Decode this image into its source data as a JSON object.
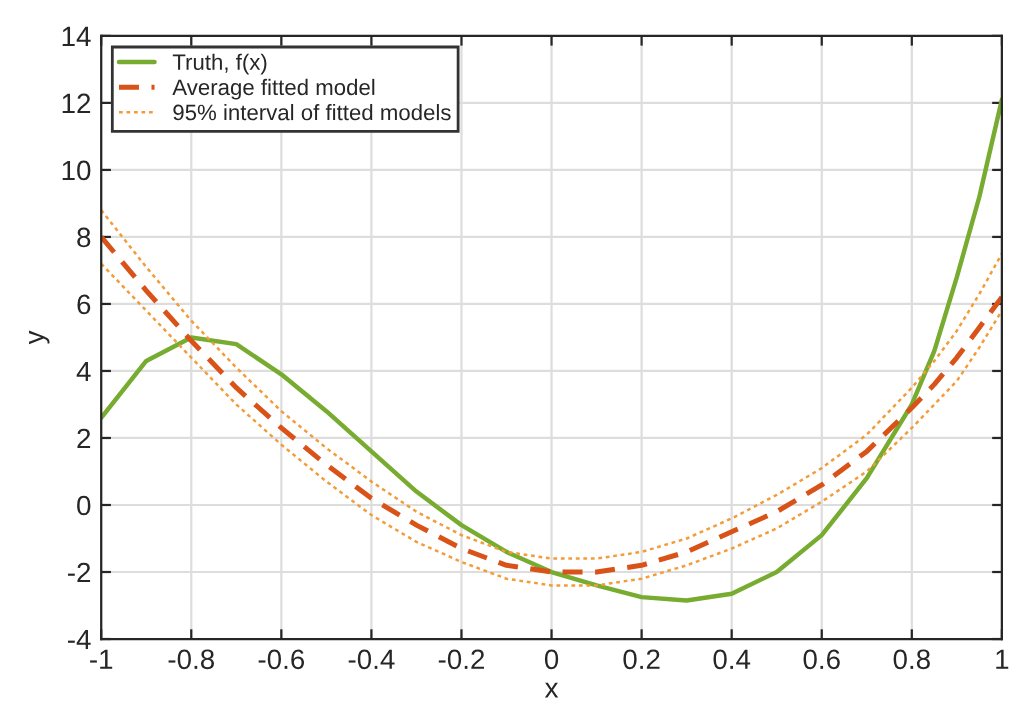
{
  "chart_data": {
    "type": "line",
    "xlabel": "x",
    "ylabel": "y",
    "x": [
      -1,
      -0.9,
      -0.8,
      -0.7,
      -0.6,
      -0.5,
      -0.4,
      -0.3,
      -0.2,
      -0.1,
      0,
      0.1,
      0.2,
      0.3,
      0.4,
      0.5,
      0.6,
      0.7,
      0.8,
      0.85,
      0.9,
      0.95,
      1
    ],
    "series": [
      {
        "name": "Truth, f(x)",
        "color": "#77ac30",
        "line_style": "solid",
        "values": [
          2.6,
          4.3,
          5.0,
          4.8,
          3.9,
          2.8,
          1.6,
          0.4,
          -0.6,
          -1.4,
          -2.0,
          -2.4,
          -2.75,
          -2.85,
          -2.65,
          -2.0,
          -0.9,
          0.8,
          3.0,
          4.6,
          6.8,
          9.2,
          12.1
        ]
      },
      {
        "name": "Average fitted model",
        "color": "#d95319",
        "line_style": "dashed",
        "values": [
          8.0,
          6.4,
          4.9,
          3.5,
          2.3,
          1.2,
          0.2,
          -0.6,
          -1.3,
          -1.8,
          -2.0,
          -2.0,
          -1.8,
          -1.4,
          -0.8,
          -0.2,
          0.6,
          1.6,
          2.9,
          3.6,
          4.4,
          5.3,
          6.2
        ]
      },
      {
        "name": "95% interval of fitted models",
        "color": "#f39c3a",
        "line_style": "dotted",
        "values": [
          8.8,
          7.1,
          5.5,
          4.1,
          2.8,
          1.7,
          0.7,
          -0.2,
          -0.9,
          -1.4,
          -1.6,
          -1.6,
          -1.4,
          -1.0,
          -0.4,
          0.3,
          1.1,
          2.1,
          3.5,
          4.3,
          5.2,
          6.3,
          7.5
        ]
      },
      {
        "color": "#f39c3a",
        "line_style": "dotted",
        "values": [
          7.2,
          5.8,
          4.4,
          3.0,
          1.8,
          0.7,
          -0.3,
          -1.1,
          -1.7,
          -2.2,
          -2.4,
          -2.4,
          -2.2,
          -1.8,
          -1.3,
          -0.7,
          0.1,
          1.0,
          2.3,
          3.0,
          3.7,
          4.7,
          5.8
        ]
      }
    ],
    "xlim": [
      -1,
      1
    ],
    "xticks": [
      -1,
      -0.8,
      -0.6,
      -0.4,
      -0.2,
      0,
      0.2,
      0.4,
      0.6,
      0.8,
      1
    ],
    "ylim": [
      -4,
      14
    ],
    "yticks": [
      -4,
      -2,
      0,
      2,
      4,
      6,
      8,
      10,
      12,
      14
    ],
    "grid": true,
    "legend": "top left",
    "marker": "none"
  }
}
